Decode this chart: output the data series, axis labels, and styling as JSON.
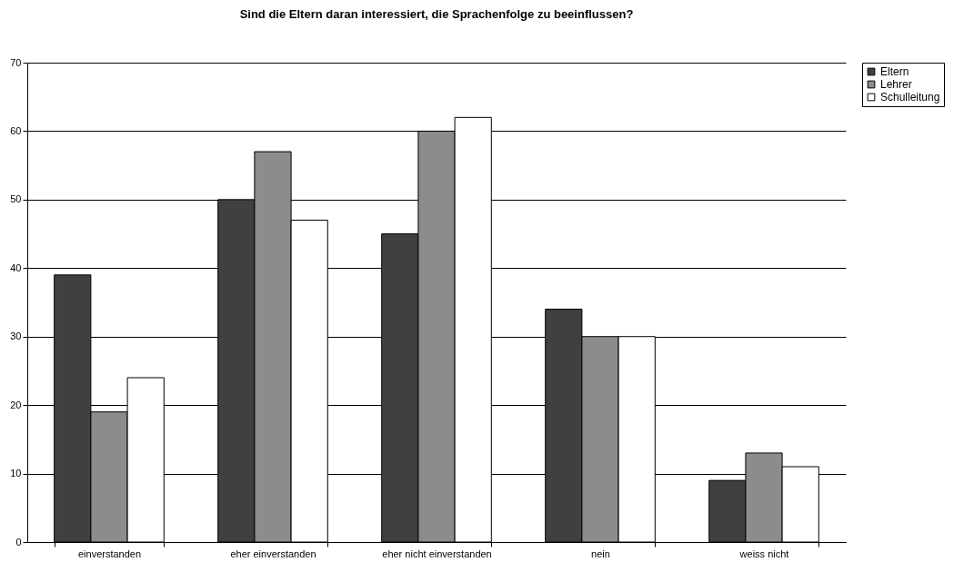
{
  "chart_data": {
    "type": "bar",
    "title": "Sind die Eltern daran interessiert, die Sprachenfolge zu beeinflussen?",
    "categories": [
      "einverstanden",
      "eher einverstanden",
      "eher nicht einverstanden",
      "nein",
      "weiss nicht"
    ],
    "series": [
      {
        "name": "Eltern",
        "color": "#404040",
        "values": [
          39,
          50,
          45,
          34,
          9
        ]
      },
      {
        "name": "Lehrer",
        "color": "#8c8c8c",
        "values": [
          19,
          57,
          60,
          30,
          13
        ]
      },
      {
        "name": "Schulleitung",
        "color": "#ffffff",
        "values": [
          24,
          47,
          62,
          30,
          11
        ]
      }
    ],
    "ylim": [
      0,
      70
    ],
    "yticks": [
      0,
      10,
      20,
      30,
      40,
      50,
      60,
      70
    ],
    "grid": "y",
    "legend": "right"
  }
}
